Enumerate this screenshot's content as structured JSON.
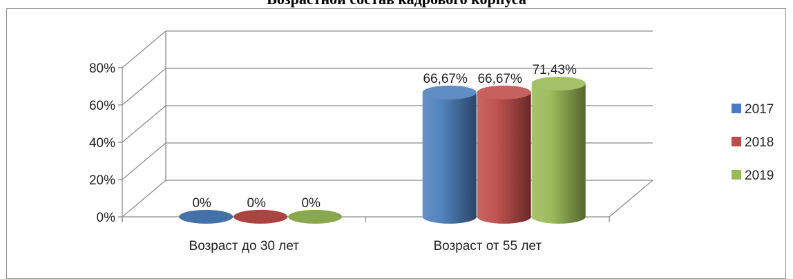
{
  "chart_data": {
    "type": "bar",
    "title": "Возрастной состав кадрового корпуса",
    "categories": [
      "Возраст до 30 лет",
      "Возраст от 55 лет"
    ],
    "series": [
      {
        "name": "2017",
        "values": [
          0,
          66.67
        ],
        "labels": [
          "0%",
          "66,67%"
        ],
        "color": "#4a7ebb"
      },
      {
        "name": "2018",
        "values": [
          0,
          66.67
        ],
        "labels": [
          "0%",
          "66,67%"
        ],
        "color": "#be4b48"
      },
      {
        "name": "2019",
        "values": [
          0,
          71.43
        ],
        "labels": [
          "0%",
          "71,43%"
        ],
        "color": "#98b954"
      }
    ],
    "yticks": [
      "0%",
      "20%",
      "40%",
      "60%",
      "80%"
    ],
    "ylim": [
      0,
      80
    ],
    "grid": true,
    "legend": "right"
  }
}
